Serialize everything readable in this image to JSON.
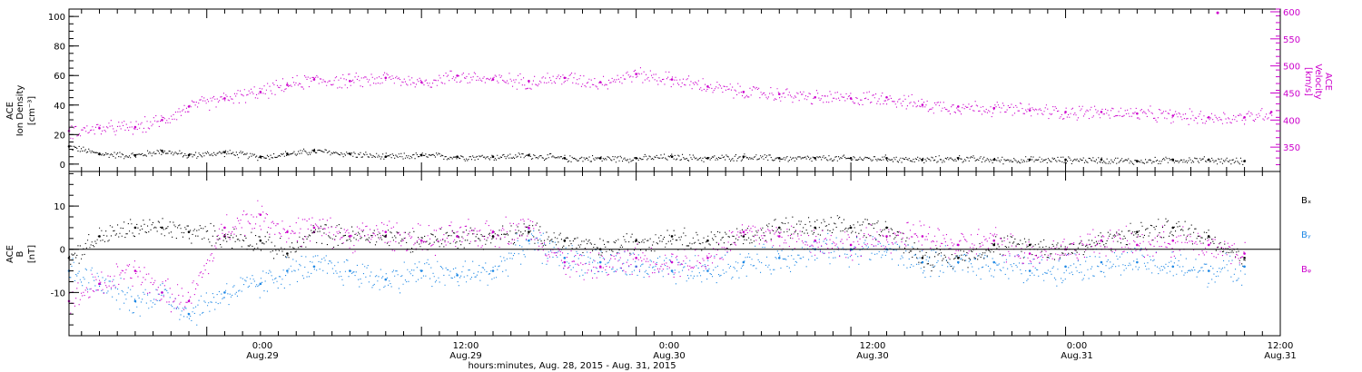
{
  "chart_data": [
    {
      "type": "scatter",
      "panel": "ion-density-velocity",
      "x_unit": "hours since 2015-08-28 00:00",
      "xlim": [
        16.3,
        84
      ],
      "left_axis": {
        "label_lines": [
          "ACE",
          "Ion Density",
          "[cm⁻³]"
        ],
        "ylim": [
          -5,
          105
        ],
        "ticks": [
          0,
          20,
          40,
          60,
          80,
          100
        ],
        "tick_labels": [
          "0",
          "20",
          "40",
          "60",
          "80",
          "100"
        ]
      },
      "right_axis": {
        "label_lines": [
          "ACE",
          "Velocity",
          "[km/s]"
        ],
        "ylim": [
          305,
          605
        ],
        "ticks": [
          350,
          400,
          450,
          500,
          550,
          600
        ],
        "tick_labels": [
          "350",
          "400",
          "450",
          "500",
          "550",
          "600"
        ],
        "color": "#cc00cc"
      },
      "series": [
        {
          "axis": "left",
          "color": "#000000",
          "x": [
            16.3,
            18,
            20,
            21.5,
            23,
            25,
            27,
            28.5,
            30,
            32,
            34,
            36,
            38,
            40,
            42,
            44,
            46,
            48,
            50,
            52,
            54,
            56,
            58,
            60,
            62,
            64,
            66,
            68,
            70,
            72,
            74,
            76,
            78,
            80,
            82
          ],
          "values": [
            12,
            7,
            6,
            9,
            6,
            8,
            5,
            7,
            9,
            7,
            5,
            6,
            5,
            5,
            6,
            4,
            4,
            4,
            5,
            4,
            5,
            4,
            4,
            4,
            4,
            3,
            4,
            3,
            3,
            3,
            3,
            2,
            3,
            3,
            2
          ]
        },
        {
          "axis": "right",
          "color": "#cc00cc",
          "x": [
            16.3,
            18,
            20,
            21.5,
            23,
            25,
            27,
            28.5,
            30,
            32,
            34,
            36,
            38,
            40,
            42,
            44,
            46,
            48,
            50,
            52,
            54,
            56,
            58,
            60,
            62,
            64,
            66,
            68,
            70,
            72,
            74,
            76,
            78,
            80,
            82,
            83.5
          ],
          "values": [
            380,
            385,
            387,
            400,
            425,
            440,
            452,
            465,
            475,
            472,
            478,
            470,
            482,
            475,
            472,
            478,
            470,
            485,
            475,
            462,
            452,
            448,
            442,
            440,
            442,
            428,
            425,
            422,
            418,
            415,
            415,
            412,
            408,
            405,
            405,
            415
          ]
        }
      ],
      "annotations": [
        {
          "x": 80.5,
          "y": 598,
          "axis": "right",
          "color": "#cc00cc"
        }
      ]
    },
    {
      "type": "scatter",
      "panel": "magnetic-field",
      "x_unit": "hours since 2015-08-28 00:00",
      "xlim": [
        16.3,
        84
      ],
      "ylim": [
        -20,
        18
      ],
      "ylabel_lines": [
        "ACE",
        "B",
        "[nT]"
      ],
      "ticks": [
        -10,
        0,
        10
      ],
      "tick_labels": [
        "-10",
        "0",
        "10"
      ],
      "zero_line": true,
      "series": [
        {
          "name": "Bₓ",
          "color": "#000000",
          "x": [
            16.3,
            18,
            20,
            21.5,
            23,
            25,
            27,
            28.5,
            30,
            32,
            34,
            36,
            38,
            40,
            42,
            44,
            46,
            48,
            50,
            52,
            54,
            56,
            58,
            60,
            62,
            64,
            66,
            68,
            70,
            72,
            74,
            76,
            78,
            80,
            82
          ],
          "values": [
            -2,
            3,
            5,
            5,
            4,
            3,
            2,
            -1,
            4,
            3,
            3,
            2,
            3,
            3,
            4,
            2,
            0,
            2,
            3,
            2,
            3,
            5,
            5,
            5,
            5,
            -2,
            -2,
            1,
            1,
            0,
            2,
            4,
            5,
            3,
            -2
          ]
        },
        {
          "name": "Bᵧ",
          "color": "#1e88e5",
          "x": [
            16.3,
            18,
            20,
            21.5,
            23,
            25,
            27,
            28.5,
            30,
            32,
            34,
            36,
            38,
            40,
            42,
            44,
            46,
            48,
            50,
            52,
            54,
            56,
            58,
            60,
            62,
            64,
            66,
            68,
            70,
            72,
            74,
            76,
            78,
            80,
            82
          ],
          "values": [
            -5,
            -8,
            -12,
            -10,
            -15,
            -10,
            -8,
            -5,
            -4,
            -5,
            -7,
            -5,
            -6,
            -5,
            2,
            -2,
            -3,
            -4,
            -5,
            -5,
            -3,
            -2,
            0,
            0,
            0,
            -3,
            -3,
            -3,
            -5,
            -4,
            -3,
            -3,
            -4,
            -5,
            -4
          ]
        },
        {
          "name": "Bᵩ",
          "color": "#cc00cc",
          "x": [
            16.3,
            18,
            20,
            21.5,
            23,
            25,
            27,
            28.5,
            30,
            32,
            34,
            36,
            38,
            40,
            42,
            44,
            46,
            48,
            50,
            52,
            54,
            56,
            58,
            60,
            62,
            64,
            66,
            68,
            70,
            72,
            74,
            76,
            78,
            80,
            82
          ],
          "values": [
            -12,
            -8,
            -5,
            -10,
            -12,
            5,
            8,
            4,
            5,
            3,
            4,
            2,
            3,
            4,
            5,
            -3,
            -4,
            -2,
            -3,
            -2,
            4,
            3,
            2,
            1,
            3,
            3,
            1,
            2,
            -1,
            0,
            2,
            1,
            2,
            1,
            -1
          ]
        }
      ],
      "legend": {
        "placement": "right",
        "labels": [
          "Bₓ",
          "Bᵧ",
          "Bᵩ"
        ]
      }
    }
  ],
  "x_axis": {
    "ticks": [
      {
        "x": 24,
        "time": "0:00",
        "date": "Aug.29"
      },
      {
        "x": 36,
        "time": "12:00",
        "date": "Aug.29"
      },
      {
        "x": 48,
        "time": "0:00",
        "date": "Aug.30"
      },
      {
        "x": 60,
        "time": "12:00",
        "date": "Aug.30"
      },
      {
        "x": 72,
        "time": "0:00",
        "date": "Aug.31"
      },
      {
        "x": 84,
        "time": "12:00",
        "date": "Aug.31"
      }
    ],
    "minor_step_hours": 1,
    "label": "hours:minutes, Aug. 28, 2015 - Aug. 31, 2015"
  }
}
